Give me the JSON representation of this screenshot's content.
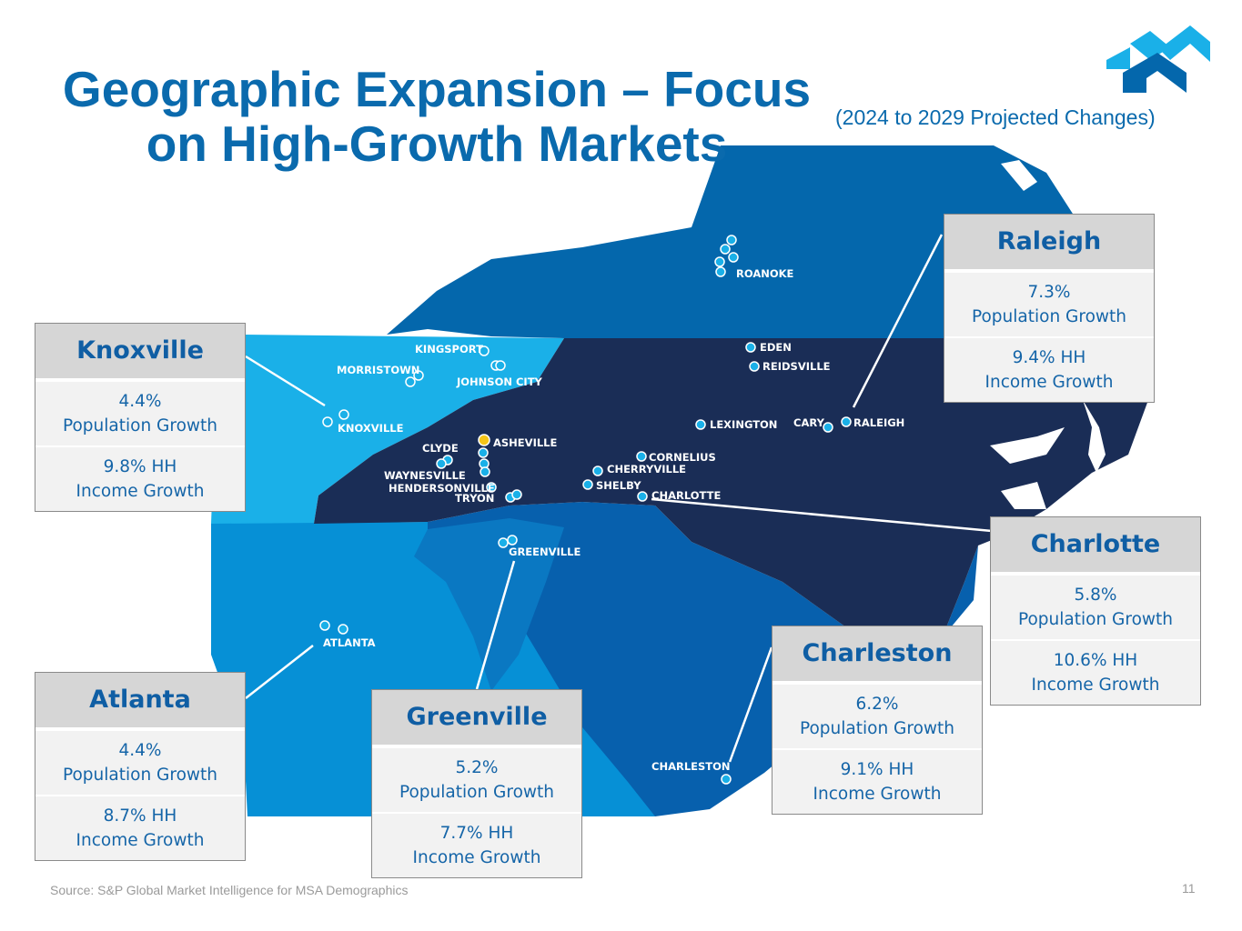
{
  "title": {
    "line1": "Geographic Expansion – Focus",
    "line2": "on High-Growth Markets"
  },
  "subtitle": "(2024 to 2029 Projected Changes)",
  "map": {
    "colors": {
      "virginia": "#0467ac",
      "tennessee": "#1ab0e8",
      "north_carolina": "#1a2d56",
      "south_carolina": "#0760ad",
      "georgia": "#0690d6",
      "greenville_region": "#0a78c2",
      "marker_fill": "#1ab0e8",
      "marker_highlight": "#f5c518"
    },
    "city_labels": {
      "roanoke": "ROANOKE",
      "kingsport": "KINGSPORT",
      "morristown": "MORRISTOWN",
      "johnson_city": "JOHNSON CITY",
      "knoxville": "KNOXVILLE",
      "eden": "EDEN",
      "reidsville": "REIDSVILLE",
      "lexington": "LEXINGTON",
      "cary": "CARY",
      "raleigh": "RALEIGH",
      "asheville": "ASHEVILLE",
      "clyde": "CLYDE",
      "waynesville": "WAYNESVILLE",
      "hendersonville": "HENDERSONVILLE",
      "tryon": "TRYON",
      "cornelius": "CORNELIUS",
      "cherryville": "CHERRYVILLE",
      "shelby": "SHELBY",
      "charlotte": "CHARLOTTE",
      "greenville": "GREENVILLE",
      "atlanta": "ATLANTA",
      "charleston": "CHARLESTON"
    }
  },
  "markets": {
    "knoxville": {
      "name": "Knoxville",
      "population": "4.4%",
      "population_label": "Population Growth",
      "income": "9.8% HH",
      "income_label": "Income Growth"
    },
    "raleigh": {
      "name": "Raleigh",
      "population": "7.3%",
      "population_label": "Population Growth",
      "income": "9.4% HH",
      "income_label": "Income Growth"
    },
    "charlotte": {
      "name": "Charlotte",
      "population": "5.8%",
      "population_label": "Population Growth",
      "income": "10.6% HH",
      "income_label": "Income Growth"
    },
    "charleston": {
      "name": "Charleston",
      "population": "6.2%",
      "population_label": "Population Growth",
      "income": "9.1% HH",
      "income_label": "Income Growth"
    },
    "atlanta": {
      "name": "Atlanta",
      "population": "4.4%",
      "population_label": "Population Growth",
      "income": "8.7% HH",
      "income_label": "Income Growth"
    },
    "greenville": {
      "name": "Greenville",
      "population": "5.2%",
      "population_label": "Population Growth",
      "income": "7.7% HH",
      "income_label": "Income Growth"
    }
  },
  "footer": {
    "source": "Source: S&P Global Market Intelligence for MSA Demographics",
    "page_number": "11"
  }
}
